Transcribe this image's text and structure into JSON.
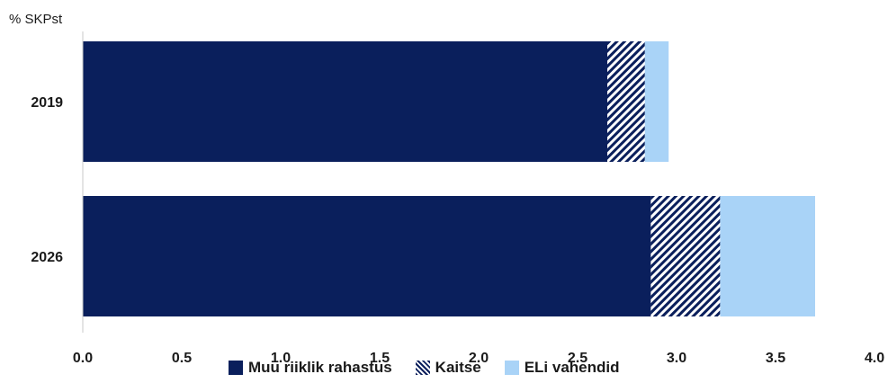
{
  "chart_data": {
    "type": "bar",
    "orientation": "horizontal",
    "stacked": true,
    "unit_label": "% SKPst",
    "categories": [
      "2019",
      "2026"
    ],
    "series": [
      {
        "name": "Muu riiklik rahastus",
        "values": [
          2.65,
          2.87
        ],
        "color": "#0a1f5c",
        "pattern": "solid"
      },
      {
        "name": "Kaitse",
        "values": [
          0.19,
          0.35
        ],
        "color": "#0a1f5c",
        "pattern": "hatched"
      },
      {
        "name": "ELi vahendid",
        "values": [
          0.12,
          0.48
        ],
        "color": "#a9d3f7",
        "pattern": "solid"
      }
    ],
    "xlim": [
      0,
      4.0
    ],
    "xticks": [
      "0.0",
      "0.5",
      "1.0",
      "1.5",
      "2.0",
      "2.5",
      "3.0",
      "3.5",
      "4.0"
    ],
    "grid": false,
    "legend_position": "bottom"
  }
}
